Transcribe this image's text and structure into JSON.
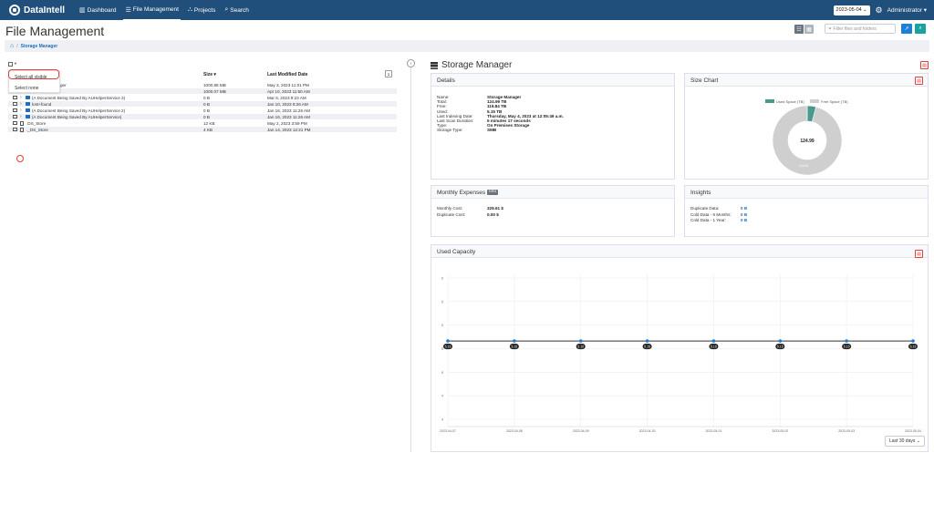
{
  "navbar": {
    "brand": "DataIntell",
    "items": [
      {
        "label": "Dashboard",
        "icon": "chart-icon"
      },
      {
        "label": "File Management",
        "icon": "list-icon"
      },
      {
        "label": "Projects",
        "icon": "sitemap-icon"
      },
      {
        "label": "Search",
        "icon": "search-icon"
      }
    ],
    "date_value": "2023-05-04",
    "user": "Administrator"
  },
  "page": {
    "title": "File Management",
    "filter_placeholder": "Filter files and folders"
  },
  "breadcrumb": {
    "items": [
      "Storage Manager"
    ]
  },
  "file_list": {
    "columns": {
      "size": "Size ▾",
      "date": "Last Modified Date"
    },
    "count_label": "1",
    "dropdown": [
      "Select all visible",
      "Select none"
    ],
    "rows": [
      {
        "name": "ger",
        "size": "1000.88 MB",
        "date": "May 3, 2023 11:01 PM",
        "kind": "none"
      },
      {
        "name": "",
        "size": "1000.07 MB",
        "date": "Apr 10, 2023 11:50 AM",
        "kind": "none"
      },
      {
        "name": "(A Document Being Saved By AUHelperService 3)",
        "size": "0 B",
        "date": "Mar 6, 2023 9:23 AM",
        "kind": "folder"
      },
      {
        "name": "lost+found",
        "size": "0 B",
        "date": "Jan 10, 2023 8:26 AM",
        "kind": "folder"
      },
      {
        "name": "(A Document Being Saved By AUHelperService 2)",
        "size": "0 B",
        "date": "Jan 16, 2023 11:26 AM",
        "kind": "folder"
      },
      {
        "name": "(A Document Being Saved By AUHelperService)",
        "size": "0 B",
        "date": "Jan 16, 2023 11:26 AM",
        "kind": "folder"
      },
      {
        "name": ".DS_Store",
        "size": "12 KB",
        "date": "May 2, 2023 3:59 PM",
        "kind": "file"
      },
      {
        "name": "._DS_Store",
        "size": "4 KB",
        "date": "Jan 14, 2023 12:21 PM",
        "kind": "file"
      }
    ]
  },
  "storage": {
    "title": "Storage Manager",
    "details": {
      "heading": "Details",
      "rows": [
        {
          "k": "Name:",
          "v": "Storage Manager"
        },
        {
          "k": "Total:",
          "v": "124.99 TB"
        },
        {
          "k": "Free:",
          "v": "119.84 TB"
        },
        {
          "k": "Used:",
          "v": "5.15 TB"
        },
        {
          "k": "Last Indexing Date:",
          "v": "Thursday, May 4, 2023 at 12:05:49 a.m."
        },
        {
          "k": "Last Scan Duration:",
          "v": "5 minutes 17 seconds"
        },
        {
          "k": "Type:",
          "v": "On Premises Storage"
        },
        {
          "k": "Storage Type:",
          "v": "SMB"
        }
      ]
    },
    "size_chart": {
      "heading": "Size Chart",
      "legend_used": "Used Space (TB)",
      "legend_free": "Free Space (TB)",
      "center_label": "124.99",
      "free_label": "119.84",
      "used": 5.15,
      "free": 119.84,
      "used_color": "#4a9a8c",
      "free_color": "#cfcfcf"
    },
    "expenses": {
      "heading": "Monthly Expenses",
      "badge": "Info",
      "rows": [
        {
          "k": "Monthly Cost:",
          "v": "329.61 $"
        },
        {
          "k": "Duplicate Cost:",
          "v": "0.00 $"
        }
      ]
    },
    "insights": {
      "heading": "Insights",
      "rows": [
        {
          "k": "Duplicate Data:",
          "v": "0 B"
        },
        {
          "k": "Cold Data - 6 Months:",
          "v": "0 B"
        },
        {
          "k": "Cold Data - 1 Year:",
          "v": "0 B"
        }
      ]
    },
    "capacity": {
      "heading": "Used Capacity",
      "range": "Last 30 days"
    }
  },
  "chart_data": {
    "type": "line",
    "title": "Used Capacity",
    "x": [
      "2023-04-07",
      "2023-04-08",
      "2023-04-09",
      "2023-04-30",
      "2023-05-01",
      "2023-05-02",
      "2023-05-03",
      "2023-05-04"
    ],
    "series": [
      {
        "values": [
          5.15,
          5.15,
          5.15,
          5.15,
          5.15,
          5.15,
          5.15,
          5.15
        ],
        "labels": [
          "5.15",
          "5.15",
          "5.15",
          "5.15",
          "5.15",
          "5.15",
          "5.15",
          "5.15"
        ]
      }
    ],
    "y_ticks": [
      "6",
      "5",
      "5",
      "5",
      "5",
      "4",
      "4"
    ],
    "ylim": [
      3.8,
      6.2
    ],
    "grid": true,
    "line_color": "#333333",
    "point_color": "#1e7fd6"
  }
}
